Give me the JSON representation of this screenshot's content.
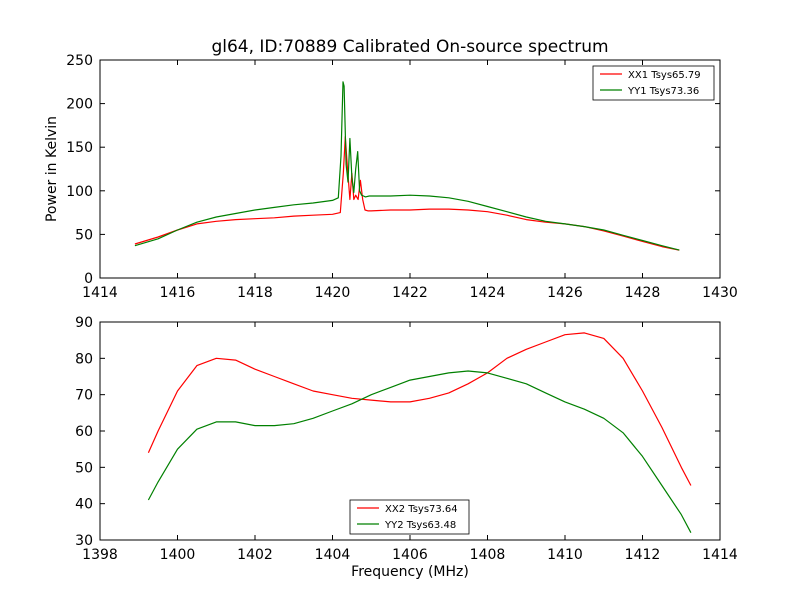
{
  "figure": {
    "title": "gl64, ID:70889 Calibrated On-source spectrum"
  },
  "colors": {
    "red": "#ff0000",
    "green": "#008000",
    "axes": "#000000",
    "background": "#ffffff"
  },
  "chart_data": [
    {
      "type": "line",
      "title": "gl64, ID:70889 Calibrated On-source spectrum",
      "xlabel": "",
      "ylabel": "Power in Kelvin",
      "xlim": [
        1414,
        1430
      ],
      "ylim": [
        0,
        250
      ],
      "xticks": [
        1414,
        1416,
        1418,
        1420,
        1422,
        1424,
        1426,
        1428,
        1430
      ],
      "yticks": [
        0,
        50,
        100,
        150,
        200,
        250
      ],
      "grid": false,
      "legend": {
        "position": "top-right"
      },
      "series": [
        {
          "name": "XX1 Tsys65.79",
          "color": "#ff0000",
          "x": [
            1414.9,
            1415.5,
            1416.0,
            1416.5,
            1417.0,
            1417.5,
            1418.0,
            1418.5,
            1419.0,
            1419.5,
            1420.0,
            1420.2,
            1420.28,
            1420.33,
            1420.38,
            1420.45,
            1420.5,
            1420.55,
            1420.6,
            1420.66,
            1420.72,
            1420.78,
            1420.84,
            1420.92,
            1421.0,
            1421.5,
            1422.0,
            1422.5,
            1423.0,
            1423.5,
            1424.0,
            1424.5,
            1425.0,
            1425.5,
            1426.0,
            1426.5,
            1427.0,
            1427.5,
            1428.0,
            1428.5,
            1428.95
          ],
          "y": [
            39,
            47,
            55,
            62,
            65,
            67,
            68,
            69,
            71,
            72,
            73,
            75,
            120,
            162,
            130,
            90,
            120,
            90,
            95,
            90,
            112,
            90,
            78,
            77,
            77,
            78,
            78,
            79,
            79,
            78,
            76,
            72,
            67,
            64,
            62,
            59,
            54,
            48,
            42,
            36,
            32
          ]
        },
        {
          "name": "YY1 Tsys73.36",
          "color": "#008000",
          "x": [
            1414.9,
            1415.5,
            1416.0,
            1416.5,
            1417.0,
            1417.5,
            1418.0,
            1418.5,
            1419.0,
            1419.5,
            1420.0,
            1420.15,
            1420.22,
            1420.27,
            1420.3,
            1420.35,
            1420.4,
            1420.45,
            1420.5,
            1420.55,
            1420.6,
            1420.65,
            1420.7,
            1420.75,
            1420.8,
            1420.85,
            1420.95,
            1421.5,
            1422.0,
            1422.5,
            1423.0,
            1423.5,
            1424.0,
            1424.5,
            1425.0,
            1425.5,
            1426.0,
            1426.5,
            1427.0,
            1427.5,
            1428.0,
            1428.5,
            1428.95
          ],
          "y": [
            37,
            45,
            55,
            64,
            70,
            74,
            78,
            81,
            84,
            86,
            89,
            92,
            140,
            225,
            220,
            130,
            110,
            160,
            115,
            98,
            125,
            145,
            100,
            95,
            94,
            93,
            94,
            94,
            95,
            94,
            92,
            88,
            82,
            76,
            70,
            65,
            62,
            59,
            55,
            49,
            43,
            37,
            32
          ]
        }
      ]
    },
    {
      "type": "line",
      "title": "",
      "xlabel": "Frequency (MHz)",
      "ylabel": "",
      "xlim": [
        1398,
        1414
      ],
      "ylim": [
        30,
        90
      ],
      "xticks": [
        1398,
        1400,
        1402,
        1404,
        1406,
        1408,
        1410,
        1412,
        1414
      ],
      "yticks": [
        30,
        40,
        50,
        60,
        70,
        80,
        90
      ],
      "grid": false,
      "legend": {
        "position": "bottom-center"
      },
      "series": [
        {
          "name": "XX2 Tsys73.64",
          "color": "#ff0000",
          "x": [
            1399.25,
            1399.5,
            1400.0,
            1400.5,
            1401.0,
            1401.5,
            1402.0,
            1402.5,
            1403.0,
            1403.5,
            1404.0,
            1404.5,
            1405.0,
            1405.5,
            1406.0,
            1406.5,
            1407.0,
            1407.5,
            1408.0,
            1408.5,
            1409.0,
            1409.5,
            1410.0,
            1410.5,
            1411.0,
            1411.5,
            1412.0,
            1412.5,
            1413.0,
            1413.25
          ],
          "y": [
            54,
            60,
            71,
            78,
            80,
            79.5,
            77,
            75,
            73,
            71,
            70,
            69,
            68.5,
            68,
            68,
            69,
            70.5,
            73,
            76,
            80,
            82.5,
            84.5,
            86.5,
            87,
            85.5,
            80,
            71,
            61,
            50,
            45
          ]
        },
        {
          "name": "YY2 Tsys63.48",
          "color": "#008000",
          "x": [
            1399.25,
            1399.5,
            1400.0,
            1400.5,
            1401.0,
            1401.5,
            1402.0,
            1402.5,
            1403.0,
            1403.5,
            1404.0,
            1404.5,
            1405.0,
            1405.5,
            1406.0,
            1406.5,
            1407.0,
            1407.5,
            1408.0,
            1408.5,
            1409.0,
            1409.5,
            1410.0,
            1410.5,
            1411.0,
            1411.5,
            1412.0,
            1412.5,
            1413.0,
            1413.25
          ],
          "y": [
            41,
            46,
            55,
            60.5,
            62.5,
            62.5,
            61.5,
            61.5,
            62,
            63.5,
            65.5,
            67.5,
            70,
            72,
            74,
            75,
            76,
            76.5,
            76,
            74.5,
            73,
            70.5,
            68,
            66,
            63.5,
            59.5,
            53,
            45,
            37,
            32
          ]
        }
      ]
    }
  ]
}
